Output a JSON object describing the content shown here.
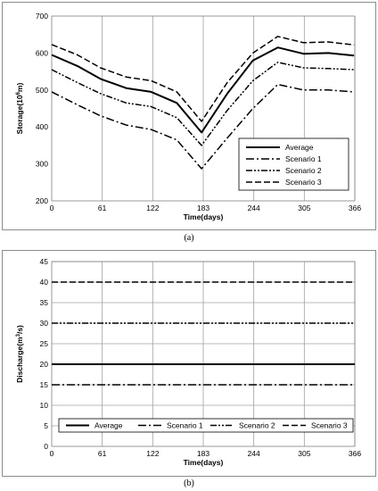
{
  "chart_data": [
    {
      "type": "line",
      "panel_label": "(a)",
      "title": "",
      "xlabel": "Time(days)",
      "ylabel": "Storage(10⁶m)",
      "ylabel_parts": {
        "pre": "Storage(10",
        "sup": "6",
        "post": "m)"
      },
      "xlim": [
        0,
        366
      ],
      "ylim": [
        200,
        700
      ],
      "x_ticks": [
        0,
        61,
        122,
        183,
        244,
        305,
        366
      ],
      "y_ticks": [
        200,
        300,
        400,
        500,
        600,
        700
      ],
      "grid": "vertical",
      "legend_position": "bottom-right",
      "x": [
        0,
        31,
        59,
        90,
        120,
        151,
        181,
        212,
        243,
        273,
        304,
        334,
        365
      ],
      "series": [
        {
          "name": "Average",
          "style": "solid",
          "values": [
            595,
            565,
            530,
            505,
            495,
            465,
            385,
            490,
            580,
            615,
            598,
            600,
            593
          ]
        },
        {
          "name": "Scenario 1",
          "style": "dash-dot",
          "values": [
            495,
            460,
            430,
            405,
            393,
            365,
            287,
            370,
            450,
            515,
            500,
            500,
            495
          ]
        },
        {
          "name": "Scenario 2",
          "style": "dash-dot-dot",
          "values": [
            555,
            520,
            490,
            465,
            455,
            425,
            350,
            445,
            525,
            575,
            560,
            558,
            555
          ]
        },
        {
          "name": "Scenario 3",
          "style": "dashed",
          "values": [
            623,
            595,
            560,
            535,
            525,
            495,
            415,
            520,
            600,
            645,
            628,
            630,
            622
          ]
        }
      ]
    },
    {
      "type": "line",
      "panel_label": "(b)",
      "title": "",
      "xlabel": "Time(days)",
      "ylabel": "Discharge(m³/s)",
      "ylabel_parts": {
        "pre": "Discharge(m",
        "sup": "3",
        "post": "/s)"
      },
      "xlim": [
        0,
        366
      ],
      "ylim": [
        0,
        45
      ],
      "x_ticks": [
        0,
        61,
        122,
        183,
        244,
        305,
        366
      ],
      "y_ticks": [
        0,
        5,
        10,
        15,
        20,
        25,
        30,
        35,
        40,
        45
      ],
      "grid": "both",
      "legend_position": "bottom",
      "x": [
        0,
        366
      ],
      "series": [
        {
          "name": "Average",
          "style": "solid",
          "values": [
            20,
            20
          ]
        },
        {
          "name": "Scenario 1",
          "style": "dash-dot",
          "values": [
            15,
            15
          ]
        },
        {
          "name": "Scenario 2",
          "style": "dash-dot-dot",
          "values": [
            30,
            30
          ]
        },
        {
          "name": "Scenario 3",
          "style": "dashed",
          "values": [
            40,
            40
          ]
        }
      ]
    }
  ]
}
